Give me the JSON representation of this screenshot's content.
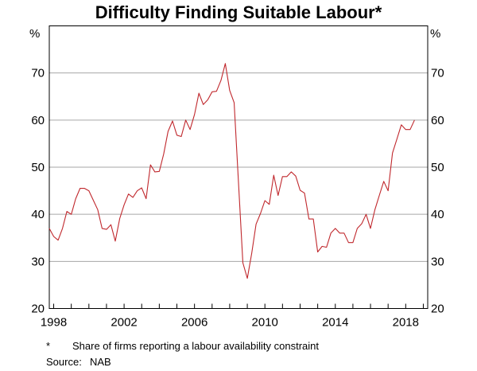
{
  "chart_data": {
    "type": "line",
    "title": "Difficulty Finding Suitable Labour*",
    "unit_left": "%",
    "unit_right": "%",
    "ylim": [
      20,
      80
    ],
    "yticks": [
      20,
      30,
      40,
      50,
      60,
      70
    ],
    "xlim": [
      1997.75,
      2019.25
    ],
    "xticks": [
      1998,
      2002,
      2006,
      2010,
      2014,
      2018
    ],
    "xtick_labels": [
      "1998",
      "2002",
      "2006",
      "2010",
      "2014",
      "2018"
    ],
    "grid": true,
    "series": [
      {
        "name": "Difficulty finding suitable labour",
        "color": "#c0282d",
        "x": [
          1997.75,
          1998.0,
          1998.25,
          1998.5,
          1998.75,
          1999.0,
          1999.25,
          1999.5,
          1999.75,
          2000.0,
          2000.25,
          2000.5,
          2000.75,
          2001.0,
          2001.25,
          2001.5,
          2001.75,
          2002.0,
          2002.25,
          2002.5,
          2002.75,
          2003.0,
          2003.25,
          2003.5,
          2003.75,
          2004.0,
          2004.25,
          2004.5,
          2004.75,
          2005.0,
          2005.25,
          2005.5,
          2005.75,
          2006.0,
          2006.25,
          2006.5,
          2006.75,
          2007.0,
          2007.25,
          2007.5,
          2007.75,
          2008.0,
          2008.25,
          2008.5,
          2008.75,
          2009.0,
          2009.25,
          2009.5,
          2009.75,
          2010.0,
          2010.25,
          2010.5,
          2010.75,
          2011.0,
          2011.25,
          2011.5,
          2011.75,
          2012.0,
          2012.25,
          2012.5,
          2012.75,
          2013.0,
          2013.25,
          2013.5,
          2013.75,
          2014.0,
          2014.25,
          2014.5,
          2014.75,
          2015.0,
          2015.25,
          2015.5,
          2015.75,
          2016.0,
          2016.25,
          2016.5,
          2016.75,
          2017.0,
          2017.25,
          2017.5,
          2017.75,
          2018.0,
          2018.25,
          2018.5
        ],
        "values": [
          37,
          35.3,
          34.5,
          37,
          40.6,
          40,
          43.3,
          45.5,
          45.5,
          45,
          43,
          41,
          37,
          36.8,
          37.8,
          34.3,
          39.1,
          42,
          44.3,
          43.6,
          45,
          45.6,
          43.3,
          50.5,
          49,
          49.1,
          52.8,
          57.6,
          59.8,
          56.8,
          56.5,
          60,
          58,
          61.2,
          65.7,
          63.3,
          64.3,
          66,
          66.1,
          68.4,
          72,
          66.3,
          63.7,
          46.7,
          29.7,
          26.4,
          31.7,
          37.9,
          40.2,
          42.9,
          42.1,
          48.3,
          44,
          48,
          48,
          49,
          48.1,
          45.1,
          44.5,
          39,
          39,
          32,
          33.2,
          33,
          36,
          37,
          36,
          36,
          34,
          34,
          37,
          38,
          40,
          37,
          41,
          44,
          47,
          45,
          53,
          56,
          59,
          58,
          58,
          60
        ]
      }
    ],
    "footnote_mark": "*",
    "footnote": "Share of firms reporting a labour availability constraint",
    "source_label": "Source:",
    "source": "NAB"
  }
}
